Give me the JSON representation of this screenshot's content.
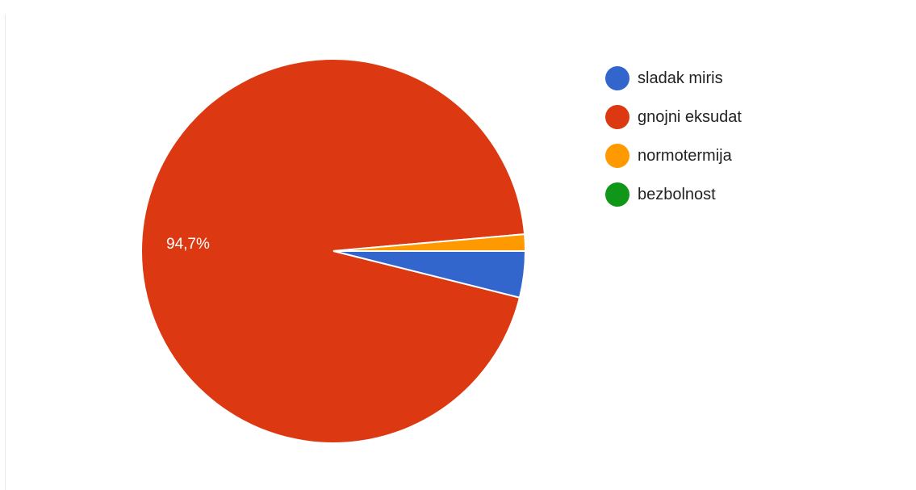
{
  "chart_data": {
    "type": "pie",
    "title": "",
    "percent_label": "94,7%",
    "series": [
      {
        "name": "sladak miris",
        "value": 3.9,
        "color": "#3366cc"
      },
      {
        "name": "gnojni eksudat",
        "value": 94.7,
        "color": "#dc3912"
      },
      {
        "name": "normotermija",
        "value": 1.4,
        "color": "#ff9900"
      },
      {
        "name": "bezbolnost",
        "value": 0,
        "color": "#109618"
      }
    ],
    "legend_position": "right"
  }
}
